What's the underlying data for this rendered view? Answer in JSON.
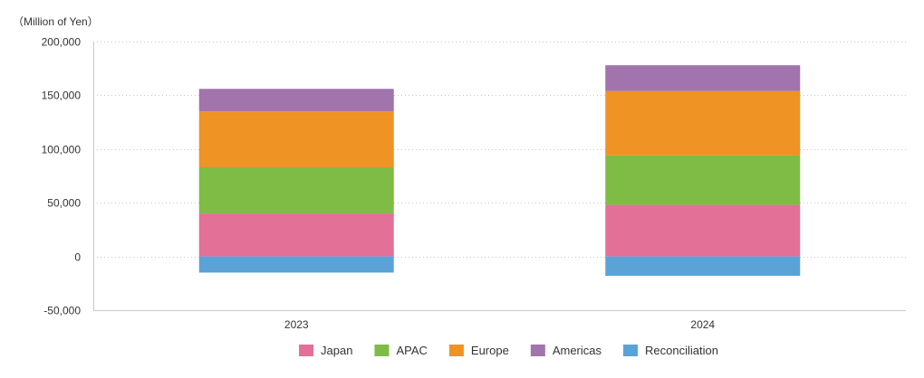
{
  "chart_data": {
    "type": "bar",
    "stacked": true,
    "unit_label": "（Million of Yen）",
    "categories": [
      "2023",
      "2024"
    ],
    "ylim": [
      -50000,
      200000
    ],
    "yticks": [
      200000,
      150000,
      100000,
      50000,
      0,
      -50000
    ],
    "ytick_labels": [
      "200,000",
      "150,000",
      "100,000",
      "50,000",
      "0",
      "-50,000"
    ],
    "grid": true,
    "legend_position": "bottom",
    "series": [
      {
        "name": "Japan",
        "color": "#e37096",
        "values": [
          40000,
          48000
        ]
      },
      {
        "name": "APAC",
        "color": "#7fbc45",
        "values": [
          43000,
          46000
        ]
      },
      {
        "name": "Europe",
        "color": "#ee9324",
        "values": [
          52000,
          60000
        ]
      },
      {
        "name": "Americas",
        "color": "#a274ad",
        "values": [
          21000,
          24000
        ]
      },
      {
        "name": "Reconciliation",
        "color": "#5ba3d6",
        "values": [
          -15000,
          -18000
        ]
      }
    ]
  }
}
